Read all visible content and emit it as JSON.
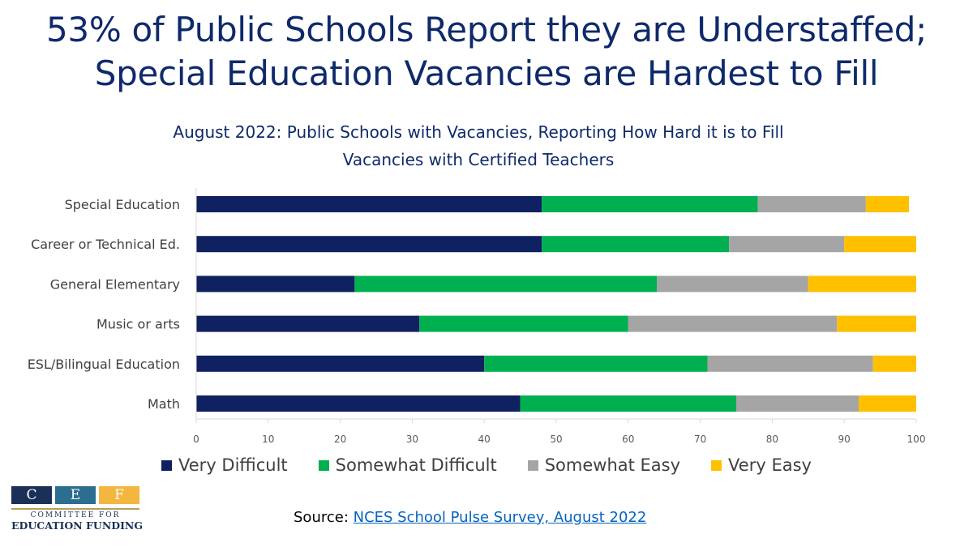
{
  "page": {
    "title_line1": "53% of Public Schools Report they are Understaffed;",
    "title_line2": "Special Education Vacancies are Hardest to Fill"
  },
  "chart_data": {
    "type": "bar",
    "orientation": "horizontal",
    "stacked": true,
    "title_line1": "August 2022: Public Schools with Vacancies, Reporting How Hard it is to Fill",
    "title_line2": "Vacancies with Certified Teachers",
    "categories": [
      "Special Education",
      "Career or Technical Ed.",
      "General Elementary",
      "Music or arts",
      "ESL/Bilingual Education",
      "Math"
    ],
    "series": [
      {
        "name": "Very Difficult",
        "color": "#0f2161",
        "values": [
          48,
          48,
          22,
          31,
          40,
          45
        ]
      },
      {
        "name": "Somewhat Difficult",
        "color": "#00b050",
        "values": [
          30,
          26,
          42,
          29,
          31,
          30
        ]
      },
      {
        "name": "Somewhat Easy",
        "color": "#a5a5a5",
        "values": [
          15,
          16,
          21,
          29,
          23,
          17
        ]
      },
      {
        "name": "Very Easy",
        "color": "#ffc000",
        "values": [
          6,
          10,
          15,
          11,
          6,
          8
        ]
      }
    ],
    "xlim": [
      0,
      100
    ],
    "xticks": [
      0,
      10,
      20,
      30,
      40,
      50,
      60,
      70,
      80,
      90,
      100
    ],
    "xlabel": "",
    "ylabel": "",
    "grid": false,
    "legend_position": "bottom"
  },
  "logo": {
    "letters": [
      "C",
      "E",
      "F"
    ],
    "colors": [
      "#1b3056",
      "#2c6e8f",
      "#f3b63f"
    ],
    "line1": "COMMITTEE FOR",
    "line2": "EDUCATION FUNDING"
  },
  "source": {
    "prefix": "Source: ",
    "link_text": "NCES School Pulse Survey, August 2022"
  }
}
